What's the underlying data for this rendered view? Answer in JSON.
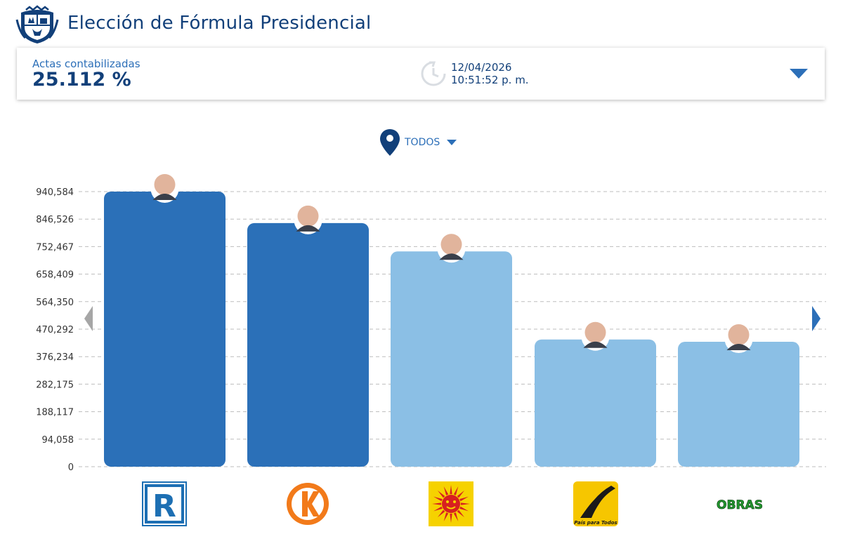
{
  "header": {
    "title": "Elección de Fórmula Presidencial"
  },
  "summary": {
    "actas_label": "Actas contabilizadas",
    "actas_value": "25.112 %",
    "date": "12/04/2026",
    "time": "10:51:52 p. m."
  },
  "location": {
    "label": "TODOS"
  },
  "colors": {
    "primary_bar": "#2b70b8",
    "secondary_bar": "#8bbfe5",
    "text": "#12407a",
    "grid": "#bdbdbd"
  },
  "icons": {
    "crest": "peru-coat-of-arms-icon",
    "clock": "clock-refresh-icon",
    "toggle": "caret-down-icon",
    "location": "map-pin-icon",
    "prev": "chevron-left-icon",
    "next": "chevron-right-icon"
  },
  "chart_data": {
    "type": "bar",
    "categories": [
      "R",
      "K",
      "Sol",
      "País para Todos",
      "OBRAS"
    ],
    "values": [
      940584,
      833000,
      736000,
      435000,
      427000
    ],
    "highlight": [
      true,
      true,
      false,
      false,
      false
    ],
    "ylim": [
      0,
      940584
    ],
    "yticks": [
      "0",
      "94,058",
      "188,117",
      "282,175",
      "376,234",
      "470,292",
      "564,350",
      "658,409",
      "752,467",
      "846,526",
      "940,584"
    ],
    "grid": true,
    "logo_texts": [
      "R",
      "K",
      "",
      "País para Todos",
      "OBRAS"
    ]
  }
}
